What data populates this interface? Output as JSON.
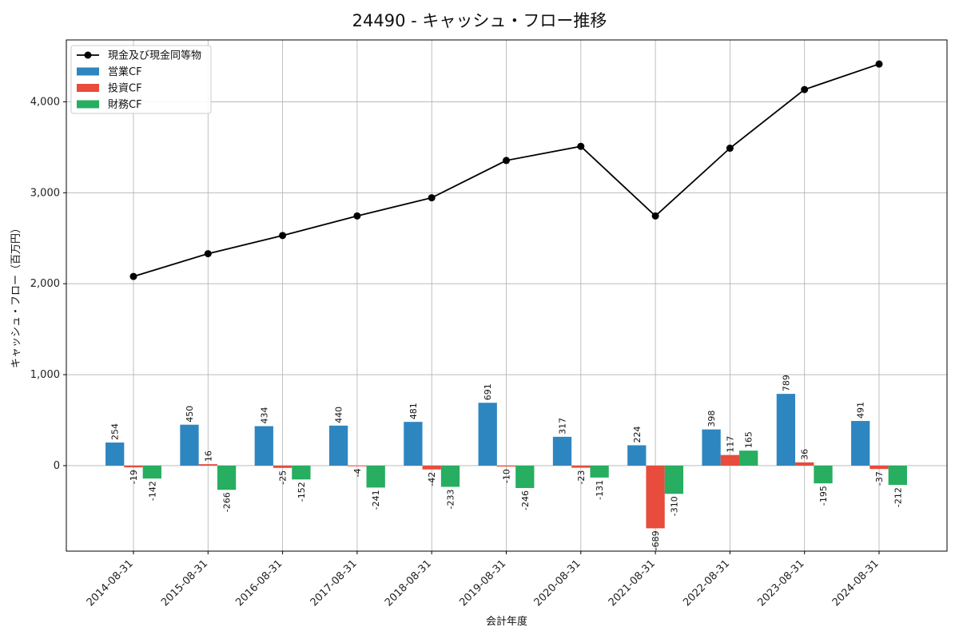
{
  "chart_data": {
    "type": "bar",
    "title": "24490 - キャッシュ・フロー推移",
    "xlabel": "会計年度",
    "ylabel": "キャッシュ・フロー（百万円）",
    "categories": [
      "2014-08-31",
      "2015-08-31",
      "2016-08-31",
      "2017-08-31",
      "2018-08-31",
      "2019-08-31",
      "2020-08-31",
      "2021-08-31",
      "2022-08-31",
      "2023-08-31",
      "2024-08-31"
    ],
    "series": [
      {
        "name": "営業CF",
        "kind": "bar",
        "color": "#2e86c1",
        "values": [
          254,
          450,
          434,
          440,
          481,
          691,
          317,
          224,
          398,
          789,
          491
        ]
      },
      {
        "name": "投資CF",
        "kind": "bar",
        "color": "#e74c3c",
        "values": [
          -19,
          16,
          -25,
          -4,
          -42,
          -10,
          -23,
          -689,
          117,
          36,
          -37
        ]
      },
      {
        "name": "財務CF",
        "kind": "bar",
        "color": "#27ae60",
        "values": [
          -142,
          -266,
          -152,
          -241,
          -233,
          -246,
          -131,
          -310,
          165,
          -195,
          -212
        ]
      },
      {
        "name": "現金及び現金同等物",
        "kind": "line",
        "color": "#000000",
        "values": [
          2080,
          2330,
          2530,
          2745,
          2945,
          3355,
          3510,
          2745,
          3490,
          4135,
          4415
        ]
      }
    ],
    "ylim": [
      -940,
      4680
    ],
    "yticks": [
      0,
      1000,
      2000,
      3000,
      4000
    ],
    "ytick_labels": [
      "0",
      "1,000",
      "2,000",
      "3,000",
      "4,000"
    ],
    "grid": true,
    "legend": "top-left"
  }
}
